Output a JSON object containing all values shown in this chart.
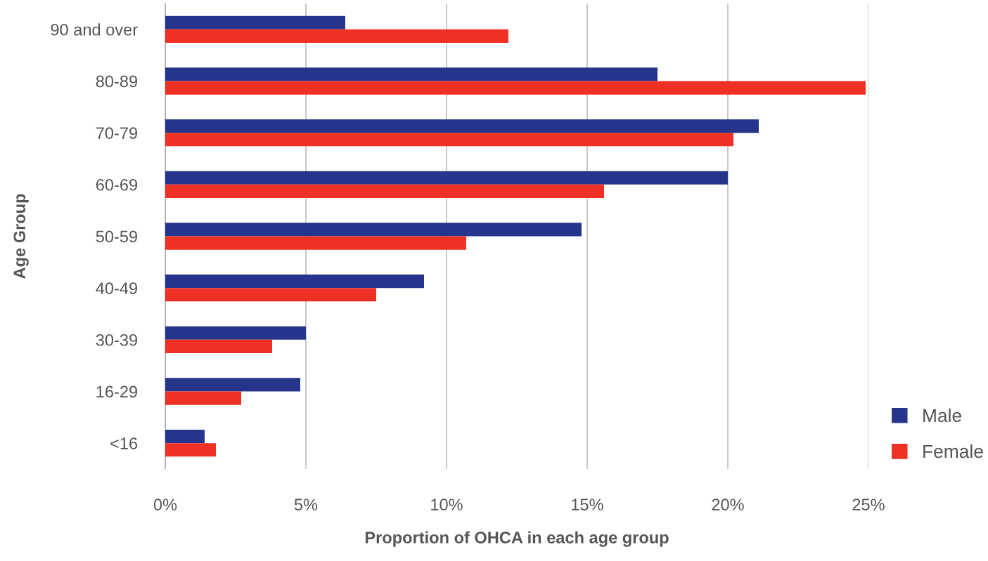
{
  "chart_data": {
    "type": "bar",
    "orientation": "horizontal",
    "xlabel": "Proportion of OHCA in each age group",
    "ylabel": "Age Group",
    "categories": [
      "90 and over",
      "80-89",
      "70-79",
      "60-69",
      "50-59",
      "40-49",
      "30-39",
      "16-29",
      "<16"
    ],
    "series": [
      {
        "name": "Male",
        "color": "#27348b",
        "values": [
          6.4,
          17.5,
          21.1,
          20.0,
          14.8,
          9.2,
          5.0,
          4.8,
          1.4
        ]
      },
      {
        "name": "Female",
        "color": "#ee3124",
        "values": [
          12.2,
          24.9,
          20.2,
          15.6,
          10.7,
          7.5,
          3.8,
          2.7,
          1.8
        ]
      }
    ],
    "xlim": [
      0,
      25
    ],
    "xticks": [
      {
        "value": 0,
        "label": "0%"
      },
      {
        "value": 5,
        "label": "5%"
      },
      {
        "value": 10,
        "label": "10%"
      },
      {
        "value": 15,
        "label": "15%"
      },
      {
        "value": 20,
        "label": "20%"
      },
      {
        "value": 25,
        "label": "25%"
      }
    ],
    "grid": "x",
    "legend": "bottom right"
  }
}
